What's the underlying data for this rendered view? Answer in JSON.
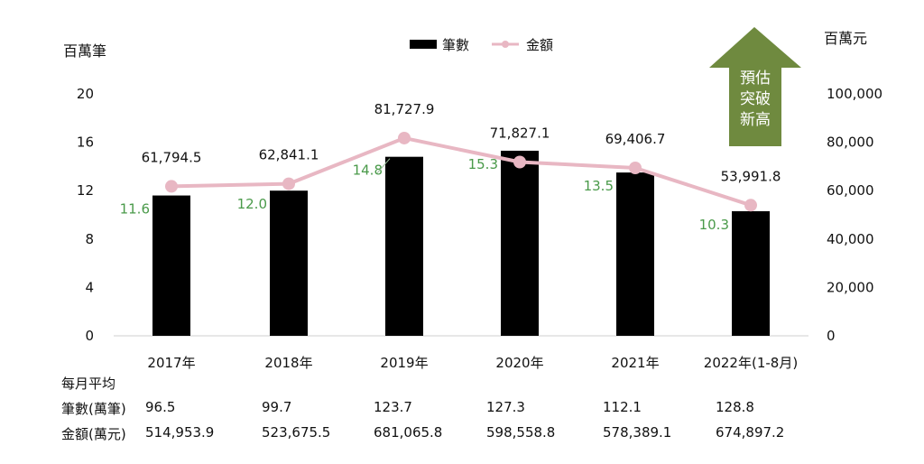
{
  "chart_data": {
    "type": "bar+line",
    "categories": [
      "2017年",
      "2018年",
      "2019年",
      "2020年",
      "2021年",
      "2022年(1-8月)"
    ],
    "series": [
      {
        "name": "筆數",
        "type": "bar",
        "axis": "left",
        "values": [
          11.6,
          12.0,
          14.8,
          15.3,
          13.5,
          10.3
        ],
        "labels": [
          "11.6",
          "12.0",
          "14.8",
          "15.3",
          "13.5",
          "10.3"
        ],
        "color": "#000000",
        "label_color": "#4a9a4a"
      },
      {
        "name": "金額",
        "type": "line",
        "axis": "right",
        "values": [
          61794.5,
          62841.1,
          81727.9,
          71827.1,
          69406.7,
          53991.8
        ],
        "labels": [
          "61,794.5",
          "62,841.1",
          "81,727.9",
          "71,827.1",
          "69,406.7",
          "53,991.8"
        ],
        "color": "#e8b7c3"
      }
    ],
    "left_axis": {
      "unit": "百萬筆",
      "ylim": [
        0,
        20
      ],
      "ticks": [
        "0",
        "4",
        "8",
        "12",
        "16",
        "20"
      ]
    },
    "right_axis": {
      "unit": "百萬元",
      "ylim": [
        0,
        100000
      ],
      "ticks": [
        "0",
        "20,000",
        "40,000",
        "60,000",
        "80,000",
        "100,000"
      ]
    },
    "legend_position": "top-center",
    "grid": false,
    "annotation": {
      "lines": [
        "預估",
        "突破",
        "新高"
      ],
      "shape": "up-arrow",
      "color": "#6f8a3f"
    }
  },
  "table": {
    "title": "每月平均",
    "rows": [
      {
        "label": "筆數(萬筆)",
        "values": [
          "96.5",
          "99.7",
          "123.7",
          "127.3",
          "112.1",
          "128.8"
        ]
      },
      {
        "label": "金額(萬元)",
        "values": [
          "514,953.9",
          "523,675.5",
          "681,065.8",
          "598,558.8",
          "578,389.1",
          "674,897.2"
        ]
      }
    ]
  }
}
